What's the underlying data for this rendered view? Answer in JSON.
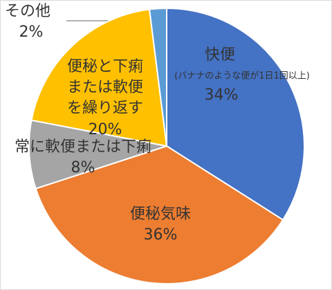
{
  "chart_data": {
    "type": "pie",
    "categories": [
      "快便",
      "便秘気味",
      "常に軟便または下痢",
      "便秘と下痢\nまたは軟便\nを繰り返す",
      "その他"
    ],
    "values": [
      34,
      36,
      8,
      20,
      2
    ],
    "value_labels": [
      "34%",
      "36%",
      "8%",
      "20%",
      "2%"
    ],
    "colors": [
      "#4472c4",
      "#ed7d31",
      "#a5a5a5",
      "#ffc000",
      "#5b9bd5"
    ],
    "annotation": "(バナナのような便が1日1回以上)"
  }
}
